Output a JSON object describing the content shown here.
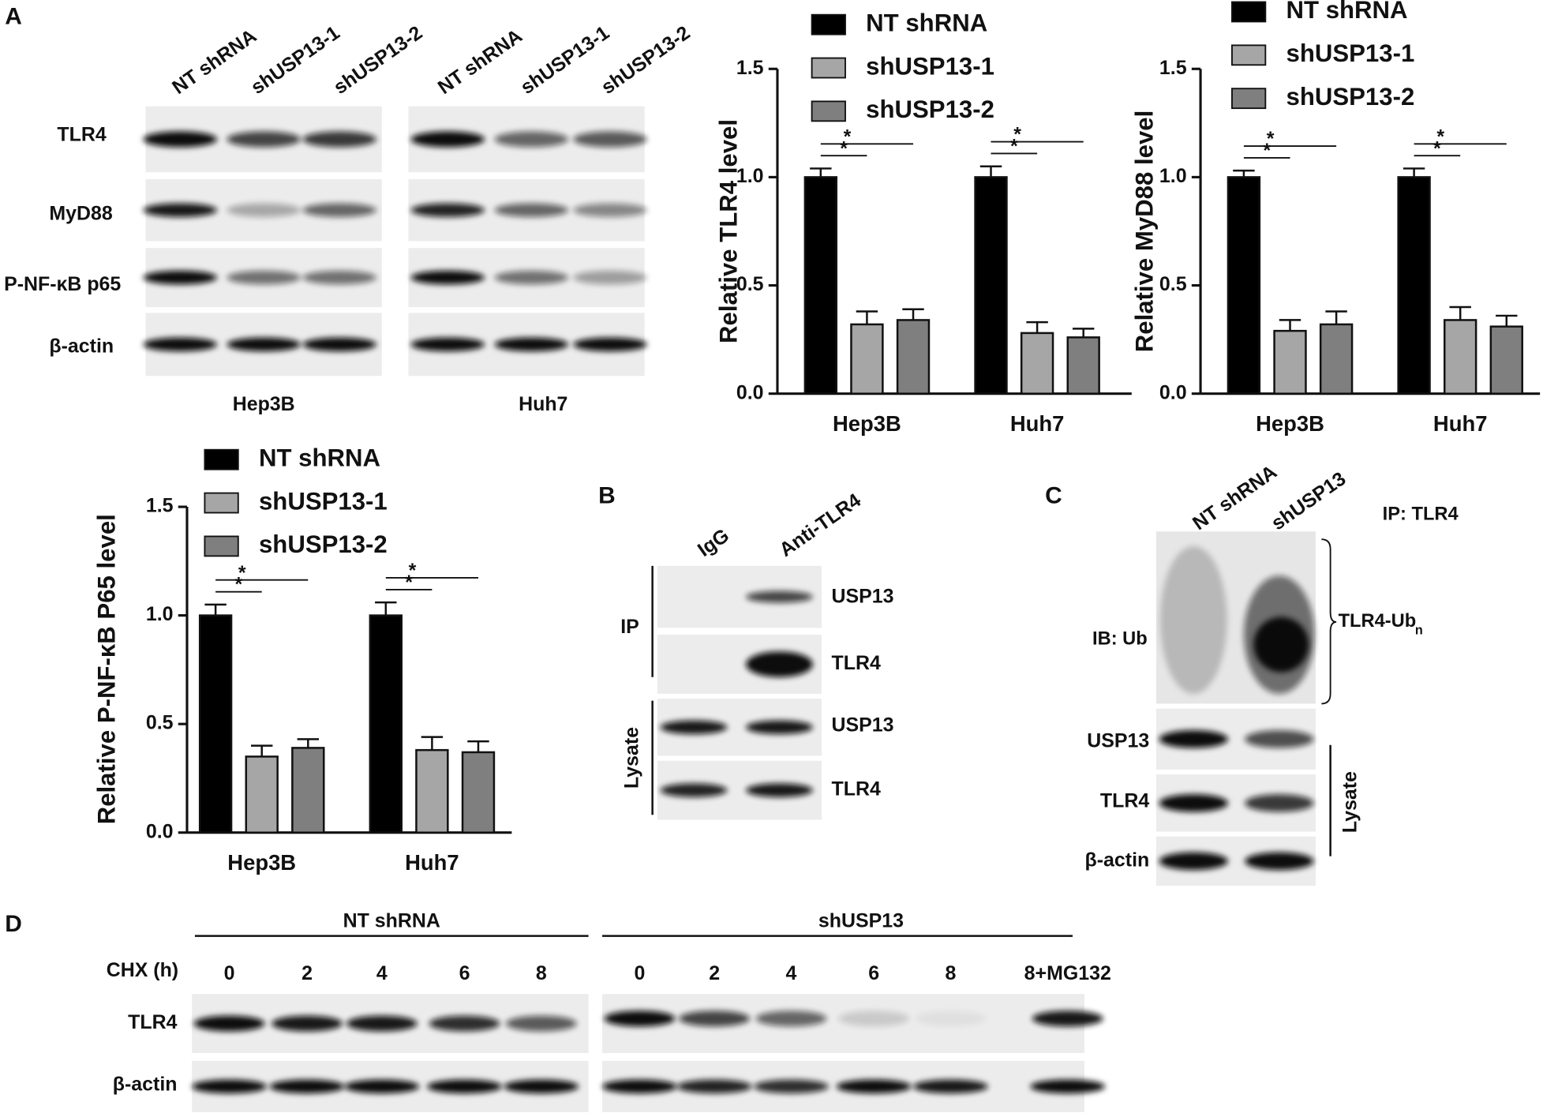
{
  "chart_data": [
    {
      "type": "bar",
      "y_label": "Relative TLR4 level",
      "categories": [
        "Hep3B",
        "Huh7"
      ],
      "series": [
        {
          "name": "NT shRNA",
          "color": "#000000",
          "values": [
            1.0,
            1.0
          ],
          "errors": [
            0.04,
            0.05
          ]
        },
        {
          "name": "shUSP13-1",
          "color": "#a6a6a6",
          "values": [
            0.32,
            0.28
          ],
          "errors": [
            0.06,
            0.05
          ]
        },
        {
          "name": "shUSP13-2",
          "color": "#7f7f7f",
          "values": [
            0.34,
            0.26
          ],
          "errors": [
            0.05,
            0.04
          ]
        }
      ],
      "ylim": [
        0,
        1.5
      ],
      "yticks": [
        {
          "value": 0,
          "label": "0.0"
        },
        0.5,
        {
          "value": 1,
          "label": "1.0"
        },
        1.5
      ],
      "annotations": [
        "*",
        "*",
        "*",
        "*"
      ]
    },
    {
      "type": "bar",
      "y_label": "Relative MyD88 level",
      "categories": [
        "Hep3B",
        "Huh7"
      ],
      "series": [
        {
          "name": "NT shRNA",
          "color": "#000000",
          "values": [
            1.0,
            1.0
          ],
          "errors": [
            0.03,
            0.04
          ]
        },
        {
          "name": "shUSP13-1",
          "color": "#a6a6a6",
          "values": [
            0.29,
            0.34
          ],
          "errors": [
            0.05,
            0.06
          ]
        },
        {
          "name": "shUSP13-2",
          "color": "#7f7f7f",
          "values": [
            0.32,
            0.31
          ],
          "errors": [
            0.06,
            0.05
          ]
        }
      ],
      "ylim": [
        0,
        1.5
      ],
      "yticks": [
        {
          "value": 0,
          "label": "0.0"
        },
        0.5,
        {
          "value": 1,
          "label": "1.0"
        },
        1.5
      ],
      "annotations": [
        "*",
        "*",
        "*",
        "*"
      ]
    },
    {
      "type": "bar",
      "y_label": "Relative P-NF-κB P65 level",
      "categories": [
        "Hep3B",
        "Huh7"
      ],
      "series": [
        {
          "name": "NT shRNA",
          "color": "#000000",
          "values": [
            1.0,
            1.0
          ],
          "errors": [
            0.05,
            0.06
          ]
        },
        {
          "name": "shUSP13-1",
          "color": "#a6a6a6",
          "values": [
            0.35,
            0.38
          ],
          "errors": [
            0.05,
            0.06
          ]
        },
        {
          "name": "shUSP13-2",
          "color": "#7f7f7f",
          "values": [
            0.39,
            0.37
          ],
          "errors": [
            0.04,
            0.05
          ]
        }
      ],
      "ylim": [
        0,
        1.5
      ],
      "yticks": [
        {
          "value": 0,
          "label": "0.0"
        },
        0.5,
        {
          "value": 1,
          "label": "1.0"
        },
        1.5
      ],
      "annotations": [
        "*",
        "*",
        "*",
        "*"
      ]
    }
  ],
  "panel_a": {
    "label": "A",
    "lanes": [
      "NT shRNA",
      "shUSP13-1",
      "shUSP13-2",
      "NT shRNA",
      "shUSP13-1",
      "shUSP13-2"
    ],
    "rows": [
      "TLR4",
      "MyD88",
      "P-NF-κB p65",
      "β-actin"
    ],
    "cell_lines": [
      "Hep3B",
      "Huh7"
    ]
  },
  "panel_b": {
    "label": "B",
    "lanes": [
      "IgG",
      "Anti-TLR4"
    ],
    "groups": [
      "IP",
      "Lysate"
    ],
    "rows": [
      "USP13",
      "TLR4",
      "USP13",
      "TLR4"
    ]
  },
  "panel_c": {
    "label": "C",
    "lanes": [
      "NT shRNA",
      "shUSP13"
    ],
    "ip": "IP: TLR4",
    "ib": "IB: Ub",
    "complex": "TLR4-Ub",
    "complex_subscript": "n",
    "rows": [
      "USP13",
      "TLR4",
      "β-actin"
    ],
    "group": "Lysate"
  },
  "panel_d": {
    "label": "D",
    "groups": [
      "NT shRNA",
      "shUSP13"
    ],
    "time_label": "CHX (h)",
    "times": [
      "0",
      "2",
      "4",
      "6",
      "8",
      "0",
      "2",
      "4",
      "6",
      "8",
      "8+MG132"
    ],
    "rows": [
      "TLR4",
      "β-actin"
    ]
  }
}
